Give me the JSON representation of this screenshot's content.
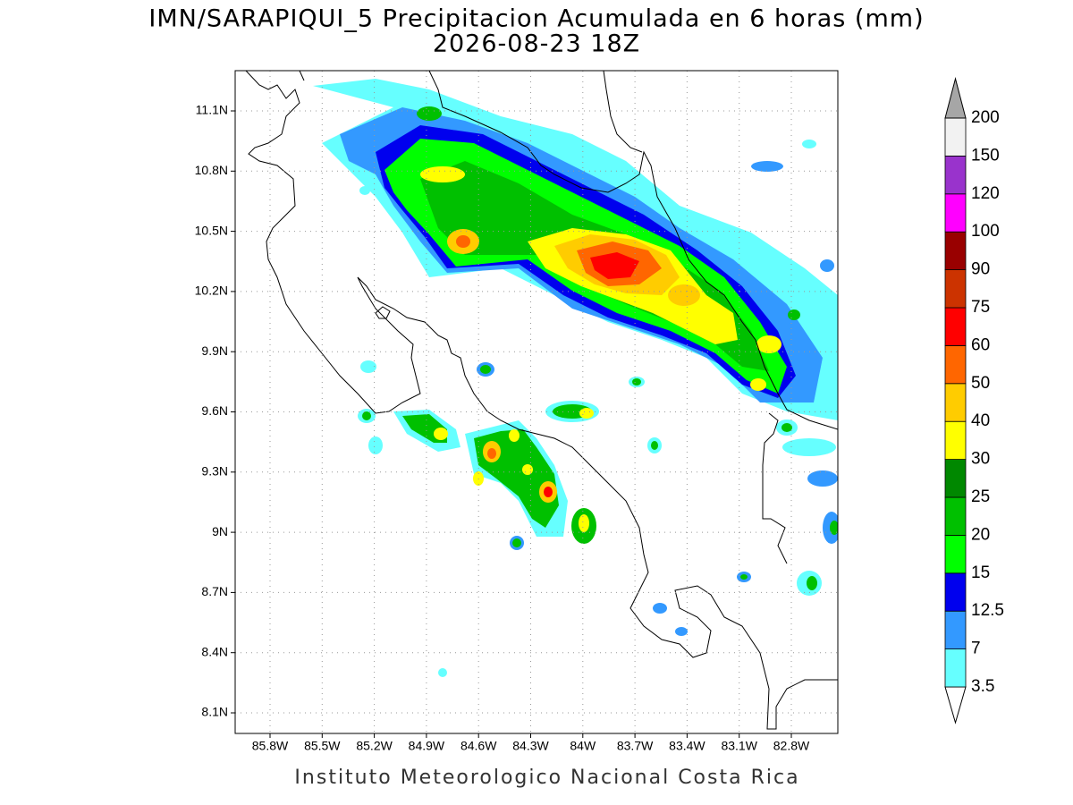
{
  "title": "IMN/SARAPIQUI_5 Precipitacion Acumulada en 6 horas (mm)",
  "subtitle": "2026-08-23 18Z",
  "footer": "Instituto Meteorologico Nacional Costa Rica",
  "lat_labels": [
    "11.1N",
    "10.8N",
    "10.5N",
    "10.2N",
    "9.9N",
    "9.6N",
    "9.3N",
    "9N",
    "8.7N",
    "8.4N",
    "8.1N"
  ],
  "lon_labels": [
    "85.8W",
    "85.5W",
    "85.2W",
    "84.9W",
    "84.6W",
    "84.3W",
    "84W",
    "83.7W",
    "83.4W",
    "83.1W",
    "82.8W"
  ],
  "colorbar": {
    "levels": [
      3.5,
      7,
      12.5,
      15,
      20,
      25,
      30,
      40,
      50,
      60,
      75,
      90,
      100,
      120,
      150,
      200
    ],
    "colors": [
      "#ffffff",
      "#66ffff",
      "#3399ff",
      "#0000ee",
      "#00ff00",
      "#00c000",
      "#008800",
      "#ffff00",
      "#ffcc00",
      "#ff6600",
      "#ff0000",
      "#cc3300",
      "#990000",
      "#ff00ff",
      "#9933cc",
      "#f2f2f2",
      "#a6a6a6"
    ]
  }
}
